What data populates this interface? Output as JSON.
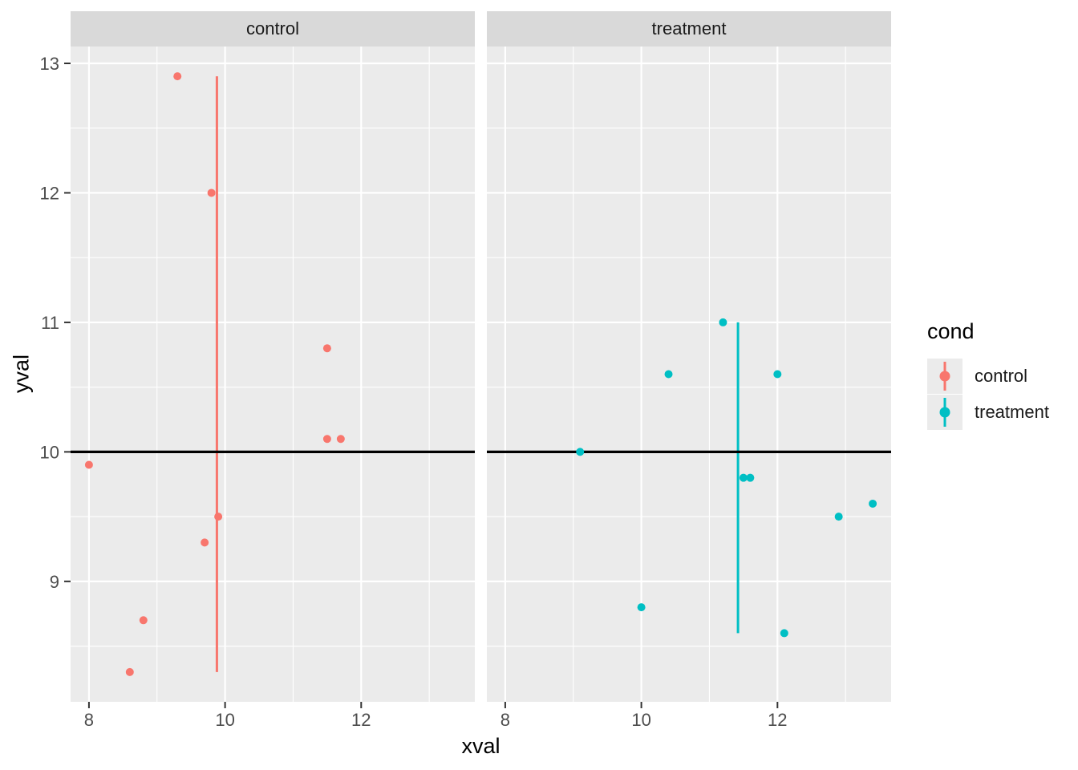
{
  "figure": {
    "background": "#FFFFFF",
    "panel_background": "#EBEBEB",
    "strip_background": "#D9D9D9",
    "grid_color": "#FFFFFF",
    "tick_mark_color": "#333333",
    "tick_label_color": "#4D4D4D"
  },
  "chart_data": {
    "type": "scatter",
    "title": "",
    "xlabel": "xval",
    "ylabel": "yval",
    "xlim": [
      7.73,
      13.67
    ],
    "ylim": [
      8.07,
      13.13
    ],
    "x_ticks": [
      8,
      10,
      12
    ],
    "y_ticks": [
      9,
      10,
      11,
      12,
      13
    ],
    "x_minor": [
      9,
      11,
      13
    ],
    "y_minor": [
      8.5,
      9.5,
      10.5,
      11.5,
      12.5
    ],
    "grid": true,
    "facets": [
      {
        "label": "control"
      },
      {
        "label": "treatment"
      }
    ],
    "hline": {
      "y": 10,
      "color": "#000000"
    },
    "vlines": [
      {
        "facet": "control",
        "x": 9.88,
        "ymin": 8.3,
        "ymax": 12.9,
        "color": "#F8766D"
      },
      {
        "facet": "treatment",
        "x": 11.42,
        "ymin": 8.6,
        "ymax": 11.0,
        "color": "#00BFC4"
      }
    ],
    "series": [
      {
        "name": "control",
        "color": "#F8766D",
        "points": [
          [
            11.5,
            10.8
          ],
          [
            9.3,
            12.9
          ],
          [
            8.0,
            9.9
          ],
          [
            11.5,
            10.1
          ],
          [
            8.6,
            8.3
          ],
          [
            9.9,
            9.5
          ],
          [
            8.8,
            8.7
          ],
          [
            11.7,
            10.1
          ],
          [
            9.7,
            9.3
          ],
          [
            9.8,
            12.0
          ]
        ]
      },
      {
        "name": "treatment",
        "color": "#00BFC4",
        "points": [
          [
            10.4,
            10.6
          ],
          [
            12.1,
            8.6
          ],
          [
            12.0,
            10.6
          ],
          [
            10.0,
            8.8
          ],
          [
            12.9,
            9.5
          ],
          [
            9.1,
            10.0
          ],
          [
            13.4,
            9.6
          ],
          [
            11.6,
            9.8
          ],
          [
            11.5,
            9.8
          ],
          [
            11.2,
            11.0
          ]
        ]
      }
    ],
    "legend": {
      "title": "cond",
      "position": "right",
      "entries": [
        {
          "label": "control",
          "color": "#F8766D"
        },
        {
          "label": "treatment",
          "color": "#00BFC4"
        }
      ]
    }
  }
}
